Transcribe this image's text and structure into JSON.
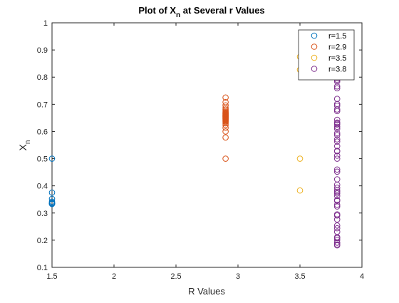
{
  "chart_data": {
    "type": "scatter",
    "title": "Plot of X_n at Several r Values",
    "title_parts": {
      "main": "Plot of X",
      "subscript": "n",
      "rest": " at Several r Values"
    },
    "xlabel": "R Values",
    "ylabel_parts": {
      "main": "X",
      "subscript": "n"
    },
    "xlim": [
      1.5,
      4
    ],
    "ylim": [
      0.1,
      1
    ],
    "xticks": [
      "1.5",
      "2",
      "2.5",
      "3",
      "3.5",
      "4"
    ],
    "yticks": [
      "0.1",
      "0.2",
      "0.3",
      "0.4",
      "0.5",
      "0.6",
      "0.7",
      "0.8",
      "0.9",
      "1"
    ],
    "marker": "open-circle",
    "legend_position": "top-right",
    "grid": false,
    "series": [
      {
        "name": "r=1.5",
        "color": "#0072BD",
        "x": 1.5,
        "y": [
          0.5,
          0.375,
          0.352,
          0.342,
          0.338,
          0.336,
          0.335,
          0.334,
          0.3335,
          0.3334
        ]
      },
      {
        "name": "r=2.9",
        "color": "#D95319",
        "x": 2.9,
        "y": [
          0.5,
          0.725,
          0.578,
          0.708,
          0.6,
          0.696,
          0.614,
          0.687,
          0.624,
          0.681,
          0.63,
          0.676,
          0.635,
          0.672,
          0.638,
          0.669,
          0.641,
          0.667,
          0.644,
          0.665,
          0.646,
          0.663,
          0.648,
          0.661,
          0.65,
          0.66,
          0.652,
          0.658,
          0.654,
          0.657,
          0.655
        ]
      },
      {
        "name": "r=3.5",
        "color": "#EDB120",
        "x": 3.5,
        "y": [
          0.5,
          0.875,
          0.383,
          0.827
        ]
      },
      {
        "name": "r=3.8",
        "color": "#7E2F8E",
        "x": 3.8,
        "y": [
          0.5,
          0.95,
          0.181,
          0.563,
          0.935,
          0.231,
          0.675,
          0.834,
          0.527,
          0.947,
          0.191,
          0.587,
          0.921,
          0.276,
          0.759,
          0.695,
          0.806,
          0.594,
          0.916,
          0.291,
          0.784,
          0.643,
          0.872,
          0.424,
          0.928,
          0.254,
          0.72,
          0.766,
          0.681,
          0.826,
          0.546,
          0.942,
          0.208,
          0.626,
          0.89,
          0.372,
          0.888,
          0.378,
          0.893,
          0.363,
          0.879,
          0.404,
          0.915,
          0.295,
          0.79,
          0.63,
          0.886,
          0.384,
          0.899,
          0.345,
          0.859,
          0.46,
          0.944,
          0.201,
          0.61,
          0.904,
          0.33,
          0.84,
          0.511,
          0.949,
          0.184,
          0.571,
          0.931,
          0.244,
          0.701,
          0.796,
          0.617,
          0.898,
          0.348,
          0.862,
          0.452,
          0.941,
          0.211,
          0.633,
          0.883,
          0.393,
          0.906,
          0.324,
          0.833,
          0.529,
          0.947,
          0.191
        ]
      }
    ]
  }
}
